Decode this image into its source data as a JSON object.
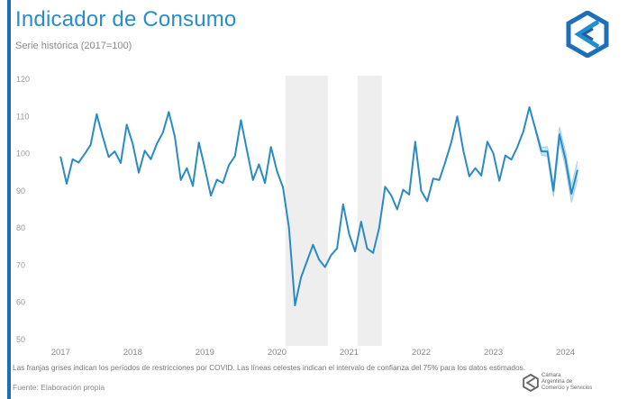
{
  "header": {
    "title": "Indicador de Consumo",
    "subtitle": "Serie histórica (2017=100)"
  },
  "footer": {
    "note": "Las franjas grises indican los períodos de restricciones por COVID. Las líneas celestes indican el intervalo de confianza del 75% para los datos estimados.",
    "source": "Fuente: Elaboración propia",
    "logo_text": [
      "Cámara",
      "Argentina de",
      "Comercio y Servicios"
    ]
  },
  "colors": {
    "accent": "#1a6fb5",
    "title": "#2a8ccd",
    "line": "#2a8bc4",
    "band": "#9fd0ee",
    "covid": "#eeeeee"
  },
  "chart_data": {
    "type": "line",
    "title": "Indicador de Consumo",
    "subtitle": "Serie histórica (2017=100)",
    "xlabel": "",
    "ylabel": "",
    "ylim": [
      50,
      120
    ],
    "yticks": [
      "50",
      "60",
      "70",
      "80",
      "90",
      "100",
      "110",
      "120"
    ],
    "xticks": [
      "2017",
      "2018",
      "2019",
      "2020",
      "2021",
      "2022",
      "2023",
      "2024"
    ],
    "grid": false,
    "x_start": "2017-01",
    "frequency": "monthly",
    "series": [
      {
        "name": "Indicador de Consumo",
        "values": [
          99.1,
          91.9,
          98.5,
          97.6,
          99.9,
          102.4,
          110.6,
          104.6,
          99.1,
          100.6,
          97.5,
          107.8,
          102.6,
          94.9,
          100.8,
          98.5,
          102.6,
          105.6,
          111.2,
          104.6,
          92.9,
          96.1,
          91.3,
          103.0,
          96.1,
          88.7,
          93.0,
          92.1,
          96.9,
          99.3,
          109.0,
          100.9,
          92.9,
          97.1,
          92.1,
          101.8,
          95.3,
          90.9,
          80.0,
          59.2,
          66.7,
          71.1,
          75.5,
          71.5,
          69.5,
          72.7,
          74.5,
          86.4,
          78.4,
          73.7,
          81.7,
          74.5,
          73.3,
          80.0,
          91.1,
          88.8,
          85.0,
          90.3,
          89.0,
          103.2,
          90.0,
          87.2,
          93.3,
          92.9,
          97.7,
          103.0,
          110.0,
          100.9,
          93.9,
          96.1,
          94.1,
          103.2,
          100.1,
          92.7,
          99.5,
          98.4,
          101.8,
          106.0,
          112.5,
          106.6,
          100.6,
          100.6,
          90.0,
          105.2,
          98.5,
          89.2,
          95.5
        ]
      }
    ],
    "confidence_interval": {
      "level": "75%",
      "start": "2023-08",
      "half_width": [
        0.6,
        1.0,
        1.3,
        1.6,
        1.9,
        2.1,
        2.3,
        2.5
      ]
    },
    "shaded_periods": [
      {
        "label": "COVID",
        "start": "2020-03",
        "end": "2020-09"
      },
      {
        "label": "COVID",
        "start": "2021-03",
        "end": "2021-06"
      }
    ]
  }
}
